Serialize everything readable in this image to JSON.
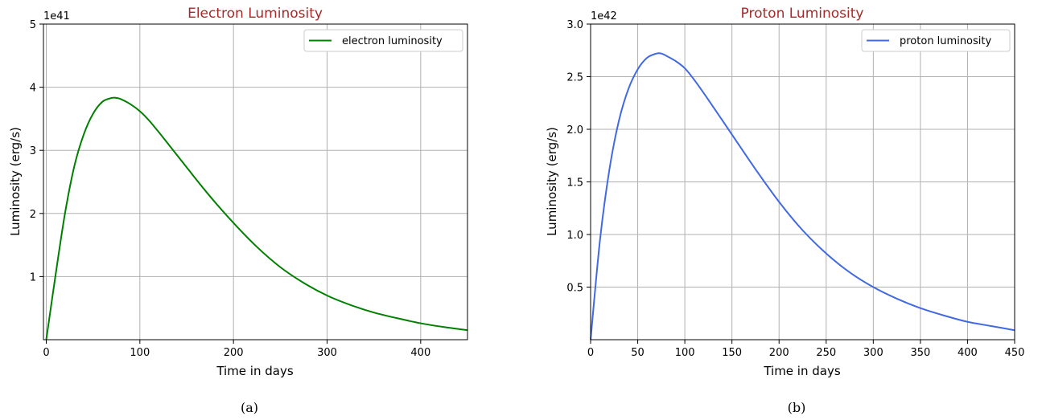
{
  "chart_data": [
    {
      "type": "line",
      "title": "Electron Luminosity",
      "xlabel": "Time in days",
      "ylabel": "Luminosity (erg/s)",
      "offset_text": "1e41",
      "caption": "(a)",
      "xlim": [
        -3,
        450
      ],
      "ylim": [
        0,
        5
      ],
      "x_ticks": [
        0,
        100,
        200,
        300,
        400
      ],
      "y_ticks": [
        1,
        2,
        3,
        4,
        5
      ],
      "grid": true,
      "legend_position": "top-right",
      "series": [
        {
          "name": "electron luminosity",
          "color": "#008000",
          "x": [
            0,
            10,
            20,
            30,
            40,
            50,
            60,
            70,
            75,
            80,
            90,
            100,
            110,
            125,
            150,
            175,
            200,
            225,
            250,
            275,
            300,
            325,
            350,
            375,
            400,
            425,
            450
          ],
          "y": [
            0,
            1.03,
            2.0,
            2.75,
            3.25,
            3.58,
            3.77,
            3.83,
            3.83,
            3.81,
            3.73,
            3.62,
            3.47,
            3.2,
            2.73,
            2.27,
            1.85,
            1.47,
            1.15,
            0.9,
            0.7,
            0.55,
            0.43,
            0.34,
            0.26,
            0.2,
            0.15
          ]
        }
      ]
    },
    {
      "type": "line",
      "title": "Proton Luminosity",
      "xlabel": "Time in days",
      "ylabel": "Luminosity (erg/s)",
      "offset_text": "1e42",
      "caption": "(b)",
      "xlim": [
        0,
        450
      ],
      "ylim": [
        0,
        3.0
      ],
      "x_ticks": [
        0,
        50,
        100,
        150,
        200,
        250,
        300,
        350,
        400,
        450
      ],
      "y_ticks": [
        0.5,
        1.0,
        1.5,
        2.0,
        2.5,
        3.0
      ],
      "y_tick_labels": [
        "0.5",
        "1.0",
        "1.5",
        "2.0",
        "2.5",
        "3.0"
      ],
      "grid": true,
      "legend_position": "top-right",
      "series": [
        {
          "name": "proton luminosity",
          "color": "#4169e1",
          "x": [
            0,
            10,
            20,
            30,
            40,
            50,
            60,
            70,
            75,
            80,
            90,
            100,
            110,
            125,
            150,
            175,
            200,
            225,
            250,
            275,
            300,
            325,
            350,
            375,
            400,
            425,
            450
          ],
          "y": [
            0,
            0.95,
            1.62,
            2.08,
            2.38,
            2.57,
            2.68,
            2.72,
            2.72,
            2.7,
            2.65,
            2.58,
            2.47,
            2.28,
            1.95,
            1.62,
            1.31,
            1.04,
            0.82,
            0.64,
            0.5,
            0.39,
            0.3,
            0.23,
            0.17,
            0.13,
            0.09
          ]
        }
      ]
    }
  ]
}
